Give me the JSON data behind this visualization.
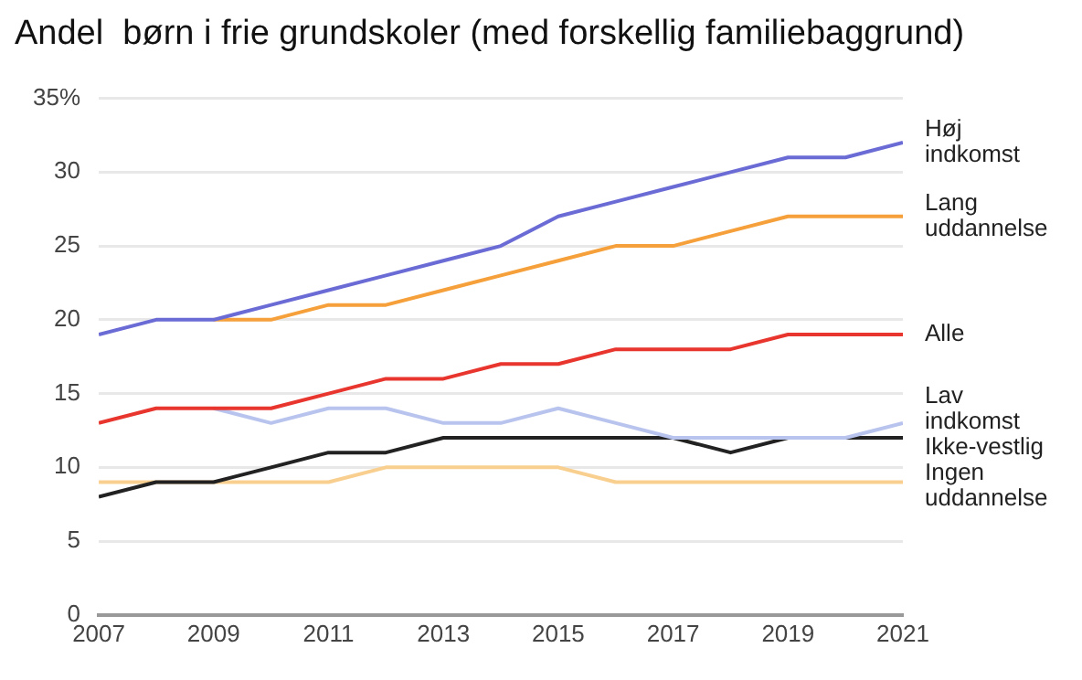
{
  "chart_data": {
    "type": "line",
    "title": "Andel  børn i frie grundskoler (med forskellig familiebaggrund)",
    "x": [
      2007,
      2008,
      2009,
      2010,
      2011,
      2012,
      2013,
      2014,
      2015,
      2016,
      2017,
      2018,
      2019,
      2020,
      2021
    ],
    "xlim": [
      2007,
      2021
    ],
    "xticks": [
      2007,
      2009,
      2011,
      2013,
      2015,
      2017,
      2019,
      2021
    ],
    "ylim": [
      0,
      35
    ],
    "yticks": [
      0,
      5,
      10,
      15,
      20,
      25,
      30,
      {
        "value": 35,
        "label": "35%"
      }
    ],
    "grid": "y",
    "legend": false,
    "marker": "none",
    "line_style": "solid",
    "series": [
      {
        "name": "Høj indkomst",
        "color": "#6b6bd6",
        "values": [
          19,
          20,
          20,
          21,
          22,
          23,
          24,
          25,
          27,
          28,
          29,
          30,
          31,
          31,
          32
        ]
      },
      {
        "name": "Lang uddannelse",
        "color": "#f5a03a",
        "values": [
          null,
          null,
          20,
          20,
          21,
          21,
          22,
          23,
          24,
          25,
          25,
          26,
          27,
          27,
          27
        ]
      },
      {
        "name": "Alle",
        "color": "#e8352e",
        "values": [
          13,
          14,
          14,
          14,
          15,
          16,
          16,
          17,
          17,
          18,
          18,
          18,
          19,
          19,
          19
        ]
      },
      {
        "name": "Lav indkomst",
        "color": "#b8c4ee",
        "values": [
          null,
          null,
          14,
          13,
          14,
          14,
          13,
          13,
          14,
          13,
          12,
          12,
          12,
          12,
          13
        ]
      },
      {
        "name": "Ikke-vestlig",
        "color": "#222222",
        "values": [
          8,
          9,
          9,
          10,
          11,
          11,
          12,
          12,
          12,
          12,
          12,
          11,
          12,
          12,
          12
        ]
      },
      {
        "name": "Ingen uddannelse",
        "color": "#f9cf8f",
        "values": [
          9,
          9,
          9,
          9,
          9,
          10,
          10,
          10,
          10,
          9,
          9,
          9,
          9,
          9,
          9
        ]
      }
    ]
  }
}
